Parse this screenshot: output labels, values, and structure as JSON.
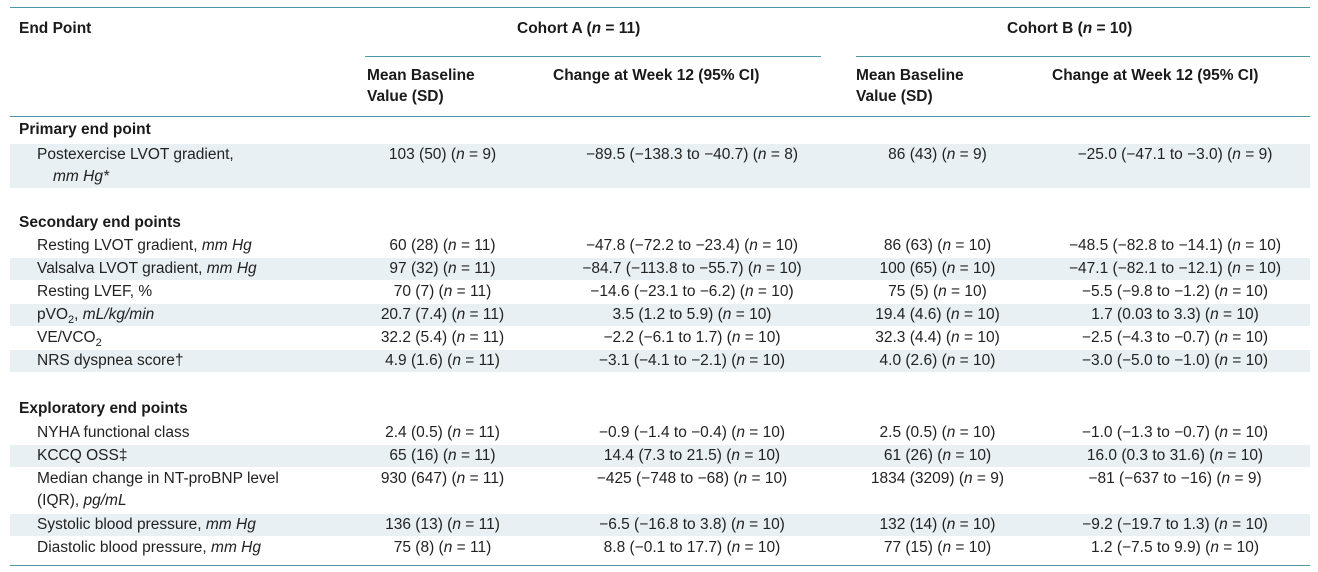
{
  "header": {
    "endpoint": "End Point",
    "cohort_a": "Cohort A (n = 11)",
    "cohort_b": "Cohort B (n = 10)",
    "mean_baseline": "Mean Baseline Value (SD)",
    "change_week12": "Change at Week 12 (95% CI)"
  },
  "sections": {
    "primary": "Primary end point",
    "secondary": "Secondary end points",
    "exploratory": "Exploratory end points"
  },
  "rows": {
    "postexercise": {
      "label": "Postexercise LVOT gradient,",
      "unit": "mm Hg*",
      "a_base": "103 (50) (n = 9)",
      "a_change": "−89.5 (−138.3 to −40.7) (n = 8)",
      "b_base": "86 (43) (n = 9)",
      "b_change": "−25.0 (−47.1 to −3.0) (n = 9)"
    },
    "resting_lvot": {
      "label": "Resting LVOT gradient,",
      "unit": "mm Hg",
      "a_base": "60 (28) (n = 11)",
      "a_change": "−47.8 (−72.2 to −23.4) (n = 10)",
      "b_base": "86 (63) (n = 10)",
      "b_change": "−48.5 (−82.8 to −14.1) (n = 10)"
    },
    "valsalva": {
      "label": "Valsalva LVOT gradient,",
      "unit": "mm Hg",
      "a_base": "97 (32) (n = 11)",
      "a_change": "−84.7 (−113.8 to −55.7) (n = 10)",
      "b_base": "100 (65) (n = 10)",
      "b_change": "−47.1 (−82.1 to −12.1) (n = 10)"
    },
    "lvef": {
      "label": "Resting LVEF, %",
      "a_base": "70 (7) (n = 11)",
      "a_change": "−14.6 (−23.1 to −6.2) (n = 10)",
      "b_base": "75 (5) (n = 10)",
      "b_change": "−5.5 (−9.8 to −1.2) (n = 10)"
    },
    "pvo2": {
      "label": "pVO",
      "sub": "2",
      "unit": "mL/kg/min",
      "a_base": "20.7 (7.4) (n = 11)",
      "a_change": "3.5 (1.2 to 5.9) (n = 10)",
      "b_base": "19.4 (4.6) (n = 10)",
      "b_change": "1.7 (0.03 to 3.3) (n = 10)"
    },
    "ve_vco2": {
      "label": "VE/VCO",
      "sub": "2",
      "a_base": "32.2 (5.4) (n = 11)",
      "a_change": "−2.2 (−6.1 to 1.7) (n = 10)",
      "b_base": "32.3 (4.4) (n = 10)",
      "b_change": "−2.5 (−4.3 to −0.7) (n = 10)"
    },
    "nrs": {
      "label": "NRS dyspnea score†",
      "a_base": "4.9 (1.6) (n = 11)",
      "a_change": "−3.1 (−4.1 to −2.1) (n = 10)",
      "b_base": "4.0 (2.6) (n = 10)",
      "b_change": "−3.0 (−5.0 to −1.0) (n = 10)"
    },
    "nyha": {
      "label": "NYHA functional class",
      "a_base": "2.4 (0.5) (n = 11)",
      "a_change": "−0.9 (−1.4 to −0.4) (n = 10)",
      "b_base": "2.5 (0.5) (n = 10)",
      "b_change": "−1.0 (−1.3 to −0.7) (n = 10)"
    },
    "kccq": {
      "label": "KCCQ OSS‡",
      "a_base": "65 (16) (n = 11)",
      "a_change": "14.4 (7.3 to 21.5) (n = 10)",
      "b_base": "61 (26) (n = 10)",
      "b_change": "16.0 (0.3 to 31.6) (n = 10)"
    },
    "ntprobnp": {
      "label": "Median change in NT-proBNP level",
      "label2": "(IQR),",
      "unit": "pg/mL",
      "a_base": "930 (647) (n = 11)",
      "a_change": "−425 (−748 to −68) (n = 10)",
      "b_base": "1834 (3209) (n = 9)",
      "b_change": "−81 (−637 to −16) (n = 9)"
    },
    "sbp": {
      "label": "Systolic blood pressure,",
      "unit": "mm Hg",
      "a_base": "136 (13) (n = 11)",
      "a_change": "−6.5 (−16.8 to 3.8) (n = 10)",
      "b_base": "132 (14) (n = 10)",
      "b_change": "−9.2 (−19.7 to 1.3) (n = 10)"
    },
    "dbp": {
      "label": "Diastolic blood pressure,",
      "unit": "mm Hg",
      "a_base": "75 (8) (n = 11)",
      "a_change": "8.8 (−0.1 to 17.7) (n = 10)",
      "b_base": "77 (15) (n = 10)",
      "b_change": "1.2 (−7.5 to 9.9) (n = 10)"
    }
  }
}
